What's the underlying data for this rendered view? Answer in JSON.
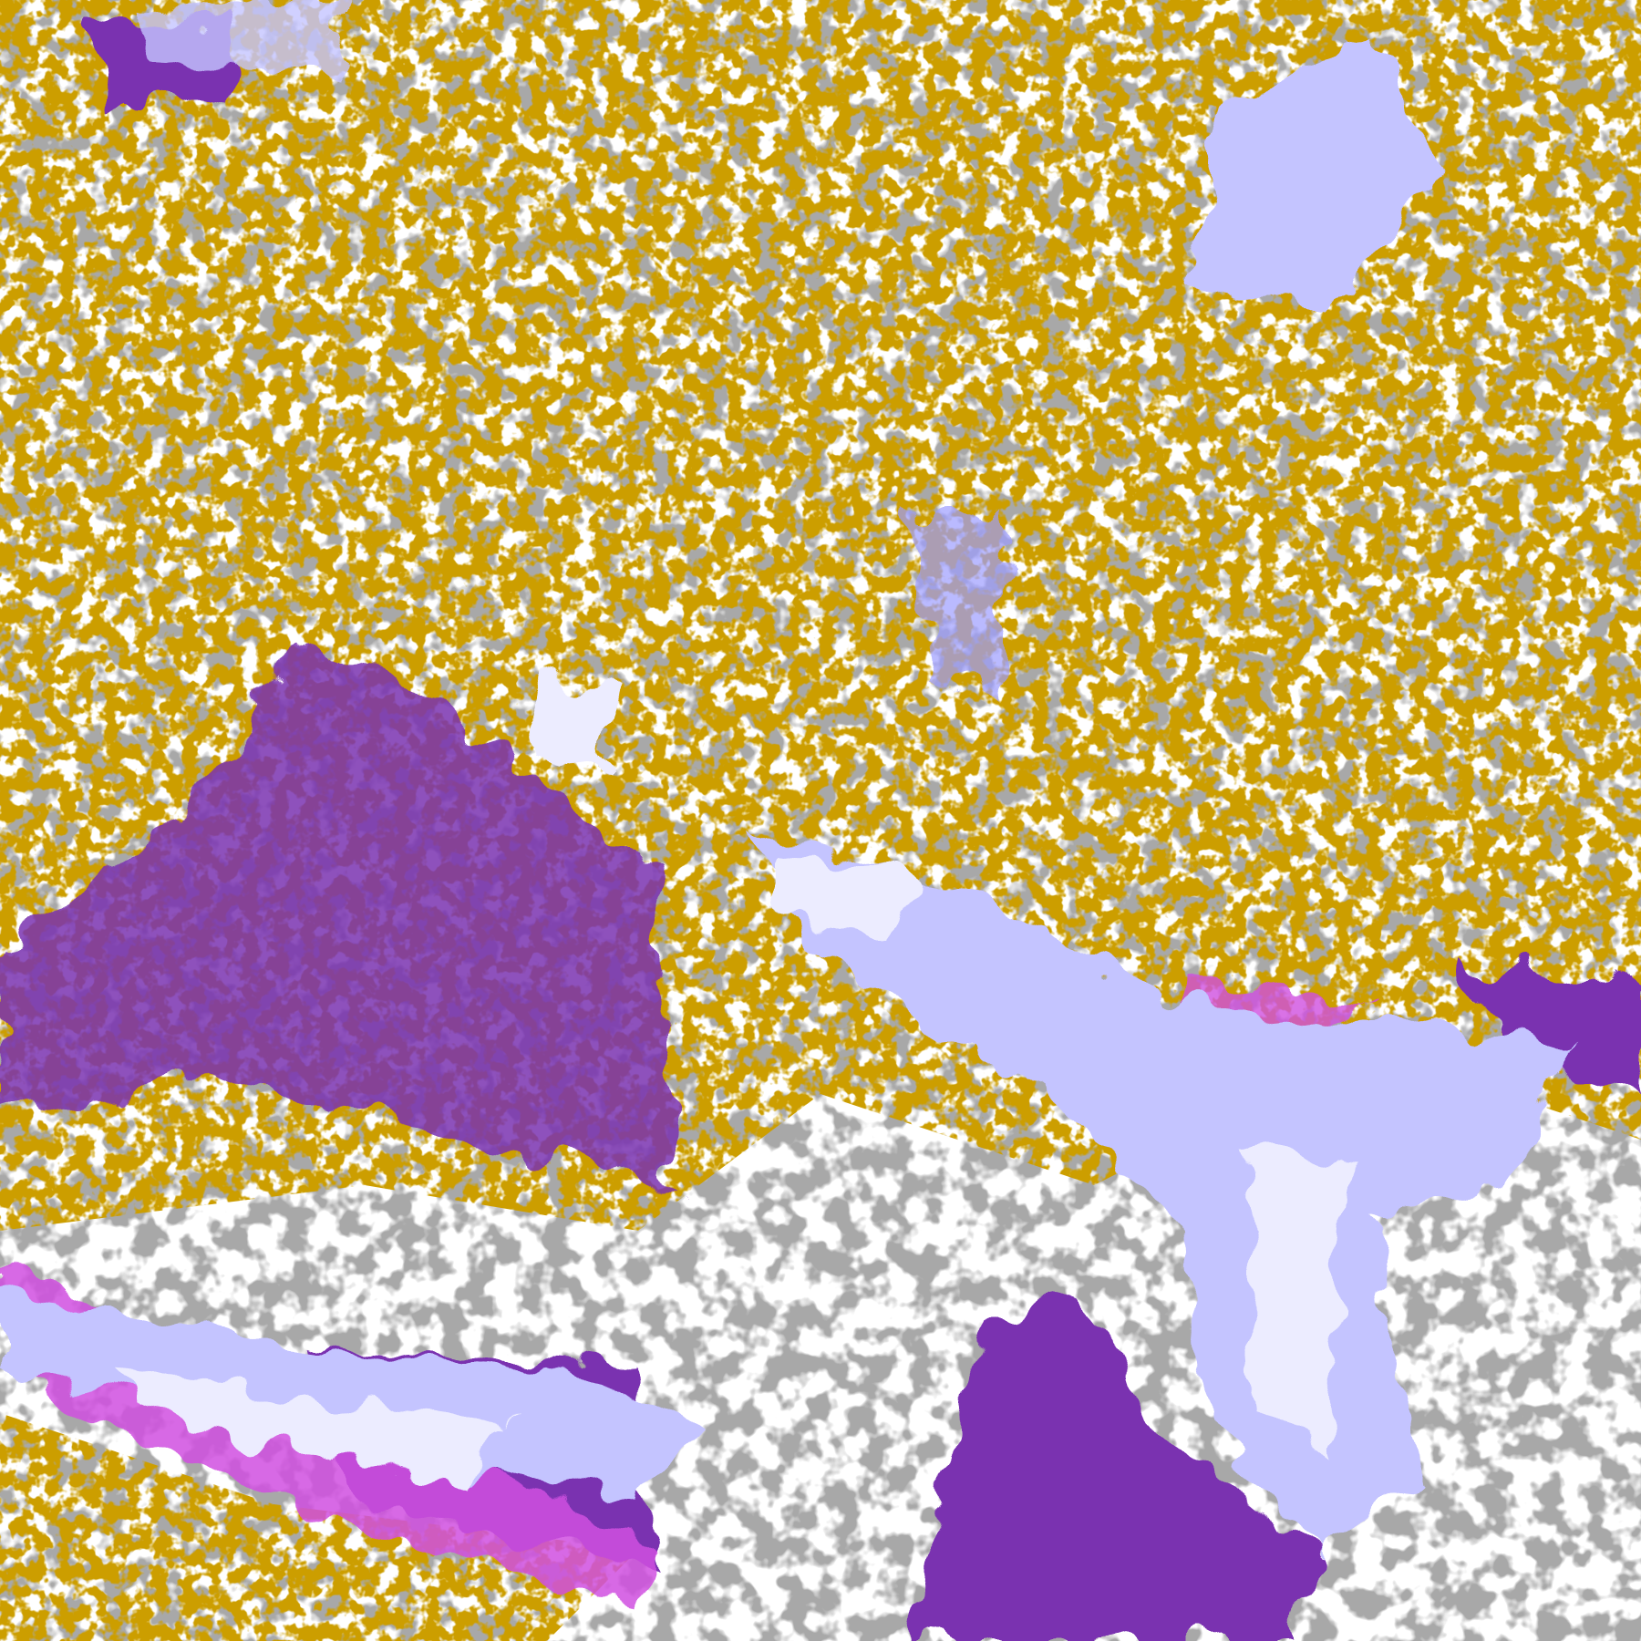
{
  "map": {
    "type": "classified satellite cloud imagery",
    "palette": {
      "clear": "#ffffff",
      "gold": "#cc9e00",
      "gold_light": "#e0b000",
      "purple": "#7a32b0",
      "magenta": "#d050e0",
      "periwinkle": "#9c9cff",
      "lavender": "#c4c4ff",
      "pale_lavender": "#ececff",
      "gray": "#a8a8a8",
      "dark_gray": "#858585"
    }
  }
}
